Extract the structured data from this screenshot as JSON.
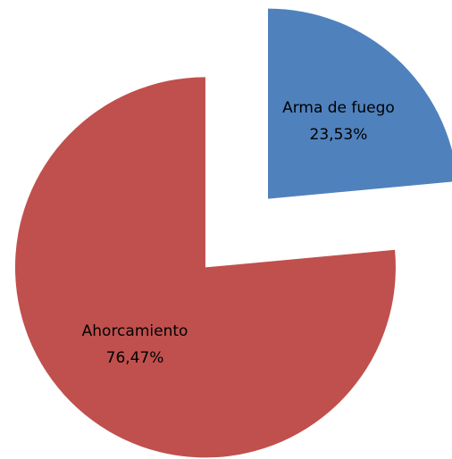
{
  "chart_data": {
    "type": "pie",
    "categories": [
      "Arma de fuego",
      "Ahorcamiento"
    ],
    "values": [
      23.53,
      76.47
    ],
    "value_labels": [
      "23,53%",
      "76,47%"
    ],
    "colors": [
      "#4f81bd",
      "#c0504d"
    ],
    "exploded": true
  }
}
